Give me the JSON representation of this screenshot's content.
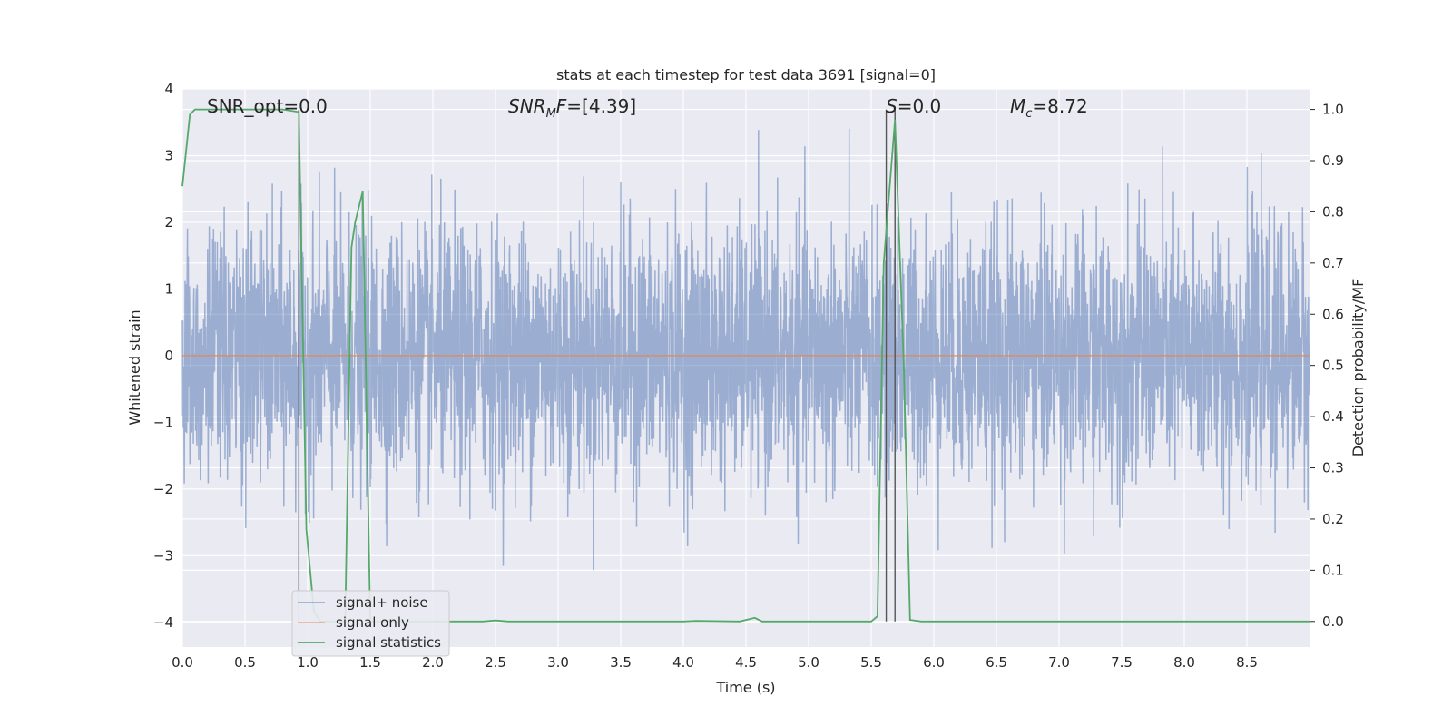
{
  "chart_data": {
    "type": "line",
    "title": "stats at each timestep for test data 3691 [signal=0]",
    "xlabel": "Time (s)",
    "ylabel_left": "Whitened strain",
    "ylabel_right": "Detection probability/MF",
    "xlim": [
      0.0,
      9.0
    ],
    "ylim_left": [
      -4.37,
      4.0
    ],
    "ylim_right": [
      -0.05,
      1.04
    ],
    "x_ticks": [
      "0.0",
      "0.5",
      "1.0",
      "1.5",
      "2.0",
      "2.5",
      "3.0",
      "3.5",
      "4.0",
      "4.5",
      "5.0",
      "5.5",
      "6.0",
      "6.5",
      "7.0",
      "7.5",
      "8.0",
      "8.5"
    ],
    "y_ticks_left": [
      "4",
      "3",
      "2",
      "1",
      "0",
      "−1",
      "−2",
      "−3",
      "−4"
    ],
    "y_ticks_right": [
      "1.0",
      "0.9",
      "0.8",
      "0.7",
      "0.6",
      "0.5",
      "0.4",
      "0.3",
      "0.2",
      "0.1",
      "0.0"
    ],
    "annotations": [
      {
        "text": "SNR_opt=0.0",
        "x": 0.2
      },
      {
        "text": "SNR_MF=[4.39]",
        "x": 2.6
      },
      {
        "text": "S=0.0",
        "x": 5.62
      },
      {
        "text": "M_c=8.72",
        "x": 6.6
      }
    ],
    "vlines_x": [
      0.93,
      5.62,
      5.69
    ],
    "grid": true,
    "legend_placement": "lower-left",
    "colors": {
      "signal_noise": "#4c72b0",
      "signal_only": "#dd8452",
      "signal_statistics": "#55a868",
      "background": "#eaeaf2"
    },
    "series": [
      {
        "name": "signal+ noise",
        "axis": "left",
        "description_values": {
          "envelope_max": 3.6,
          "envelope_min": -4.0,
          "typical_band": [
            -1.6,
            1.6
          ]
        }
      },
      {
        "name": "signal only",
        "axis": "left",
        "x": [
          0.0,
          9.0
        ],
        "values": [
          0.0,
          0.0
        ]
      },
      {
        "name": "signal statistics",
        "axis": "right",
        "x": [
          0.0,
          0.06,
          0.1,
          0.2,
          0.5,
          0.8,
          0.93,
          0.99,
          1.05,
          1.1,
          1.2,
          1.3,
          1.35,
          1.38,
          1.44,
          1.5,
          1.55,
          1.6,
          2.4,
          2.5,
          2.6,
          4.0,
          4.1,
          4.45,
          4.57,
          4.63,
          5.5,
          5.55,
          5.6,
          5.69,
          5.76,
          5.81,
          5.9,
          9.0
        ],
        "values": [
          0.85,
          0.99,
          1.0,
          1.0,
          1.0,
          1.0,
          0.995,
          0.18,
          0.02,
          0.0,
          0.0,
          0.0,
          0.73,
          0.78,
          0.84,
          0.0,
          0.0,
          0.0,
          0.0,
          0.002,
          0.0,
          0.0,
          0.001,
          0.0,
          0.007,
          0.0,
          0.0,
          0.01,
          0.7,
          0.98,
          0.5,
          0.003,
          0.0,
          0.0
        ]
      }
    ]
  }
}
